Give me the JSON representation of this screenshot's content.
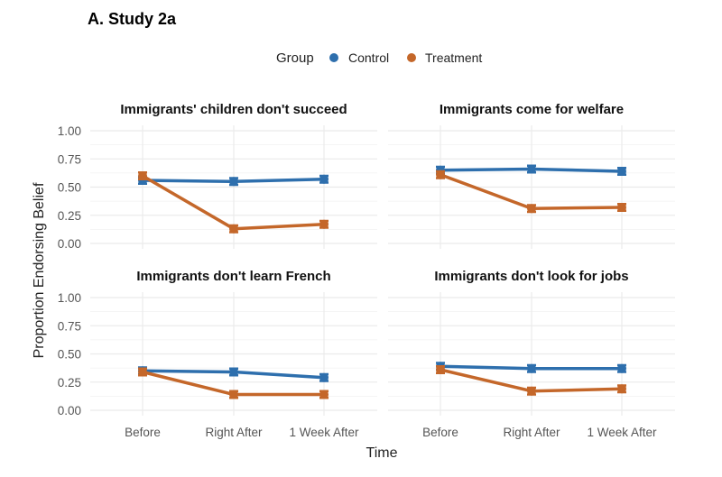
{
  "chart_data": {
    "type": "line",
    "title": "A. Study 2a",
    "xlabel": "Time",
    "ylabel": "Proportion Endorsing Belief",
    "categories": [
      "Before",
      "Right After",
      "1 Week After"
    ],
    "ylim": [
      0,
      1
    ],
    "yticks": [
      "0.00",
      "0.25",
      "0.50",
      "0.75",
      "1.00"
    ],
    "grid": true,
    "legend": {
      "title": "Group",
      "placement": "top",
      "entries": [
        "Control",
        "Treatment"
      ]
    },
    "colors": {
      "Control": "#2e6fad",
      "Treatment": "#c4672a"
    },
    "error_bars": true,
    "panels": [
      {
        "title": "Immigrants' children don't succeed",
        "series": [
          {
            "name": "Control",
            "values": [
              0.56,
              0.55,
              0.57
            ]
          },
          {
            "name": "Treatment",
            "values": [
              0.6,
              0.13,
              0.17
            ]
          }
        ]
      },
      {
        "title": "Immigrants come for welfare",
        "series": [
          {
            "name": "Control",
            "values": [
              0.65,
              0.66,
              0.64
            ]
          },
          {
            "name": "Treatment",
            "values": [
              0.61,
              0.31,
              0.32
            ]
          }
        ]
      },
      {
        "title": "Immigrants don't learn French",
        "series": [
          {
            "name": "Control",
            "values": [
              0.35,
              0.34,
              0.29
            ]
          },
          {
            "name": "Treatment",
            "values": [
              0.34,
              0.14,
              0.14
            ]
          }
        ]
      },
      {
        "title": "Immigrants don't look for jobs",
        "series": [
          {
            "name": "Control",
            "values": [
              0.39,
              0.37,
              0.37
            ]
          },
          {
            "name": "Treatment",
            "values": [
              0.36,
              0.17,
              0.19
            ]
          }
        ]
      }
    ]
  }
}
